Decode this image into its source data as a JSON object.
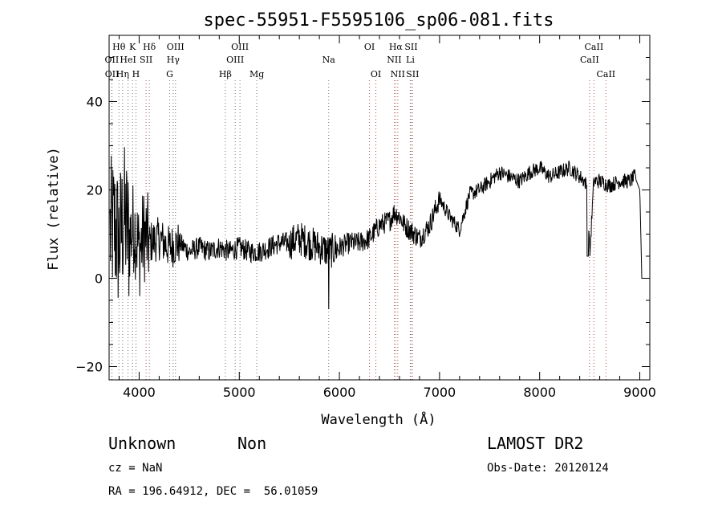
{
  "chart_data": {
    "type": "line",
    "title": "spec-55951-F5595106_sp06-081.fits",
    "xlabel": "Wavelength (Å)",
    "ylabel": "Flux (relative)",
    "xlim": [
      3700,
      9100
    ],
    "ylim": [
      -23,
      55
    ],
    "x_ticks": [
      4000,
      5000,
      6000,
      7000,
      8000,
      9000
    ],
    "y_ticks": [
      -20,
      0,
      20,
      40
    ],
    "grid": false,
    "series": [
      {
        "x": [
          3700,
          3750,
          3800,
          3850,
          3900,
          3950,
          4000,
          4050,
          4100,
          4200,
          4300,
          4400,
          4500,
          4600,
          4700,
          4800,
          4900,
          5000,
          5100,
          5200,
          5300,
          5400,
          5500,
          5600,
          5700,
          5800,
          5900,
          6000,
          6100,
          6200,
          6300,
          6400,
          6500,
          6550,
          6600,
          6650,
          6700,
          6750,
          6800,
          6900,
          7000,
          7100,
          7200,
          7300,
          7400,
          7500,
          7600,
          7700,
          7800,
          7900,
          8000,
          8100,
          8200,
          8300,
          8400,
          8450,
          8480,
          8500,
          8540,
          8600,
          8700,
          8800,
          8900,
          8950,
          9000,
          9020
        ],
        "y": [
          10,
          12,
          8,
          14,
          9,
          12,
          6,
          10,
          8,
          9,
          7,
          8,
          6,
          7,
          6,
          7,
          6,
          7,
          6,
          6,
          7,
          8,
          8,
          9,
          8,
          7,
          6,
          7,
          8,
          8,
          9,
          12,
          13,
          15,
          14,
          12,
          11,
          10,
          9,
          12,
          18,
          14,
          11,
          19,
          20,
          22,
          24,
          23,
          22,
          24,
          25,
          23,
          24,
          25,
          23,
          22,
          20,
          5,
          22,
          22,
          21,
          22,
          22,
          23,
          20,
          0
        ]
      }
    ],
    "spectral_lines": [
      {
        "label": "Hθ",
        "wavelength": 3798,
        "row": 1
      },
      {
        "label": "K",
        "wavelength": 3934,
        "row": 1
      },
      {
        "label": "Hδ",
        "wavelength": 4102,
        "row": 1
      },
      {
        "label": "OIII",
        "wavelength": 4363,
        "row": 1
      },
      {
        "label": "OIII",
        "wavelength": 5007,
        "row": 1
      },
      {
        "label": "OI",
        "wavelength": 6300,
        "row": 1
      },
      {
        "label": "Hα",
        "wavelength": 6563,
        "row": 1
      },
      {
        "label": "SII",
        "wavelength": 6716,
        "row": 1
      },
      {
        "label": "CaII",
        "wavelength": 8542,
        "row": 1
      },
      {
        "label": "OII",
        "wavelength": 3727,
        "row": 2
      },
      {
        "label": "HeI",
        "wavelength": 3889,
        "row": 2
      },
      {
        "label": "SII",
        "wavelength": 4069,
        "row": 2
      },
      {
        "label": "Hγ",
        "wavelength": 4340,
        "row": 2
      },
      {
        "label": "OIII",
        "wavelength": 4959,
        "row": 2
      },
      {
        "label": "Na",
        "wavelength": 5893,
        "row": 2
      },
      {
        "label": "NII",
        "wavelength": 6548,
        "row": 2
      },
      {
        "label": "Li",
        "wavelength": 6708,
        "row": 2
      },
      {
        "label": "CaII",
        "wavelength": 8498,
        "row": 2
      },
      {
        "label": "OII",
        "wavelength": 3729,
        "row": 3
      },
      {
        "label": "Hη",
        "wavelength": 3835,
        "row": 3
      },
      {
        "label": "H",
        "wavelength": 3968,
        "row": 3
      },
      {
        "label": "G",
        "wavelength": 4305,
        "row": 3
      },
      {
        "label": "Hβ",
        "wavelength": 4861,
        "row": 3
      },
      {
        "label": "Mg",
        "wavelength": 5175,
        "row": 3
      },
      {
        "label": "OI",
        "wavelength": 6364,
        "row": 3
      },
      {
        "label": "NII",
        "wavelength": 6583,
        "row": 3
      },
      {
        "label": "SII",
        "wavelength": 6731,
        "row": 3
      },
      {
        "label": "CaII",
        "wavelength": 8662,
        "row": 3
      }
    ]
  },
  "info": {
    "classification": "Unknown",
    "subclass": "Non",
    "survey": "LAMOST DR2",
    "cz": "cz = NaN",
    "obs_date": "Obs-Date: 20120124",
    "coords": "RA = 196.64912, DEC =  56.01059"
  }
}
